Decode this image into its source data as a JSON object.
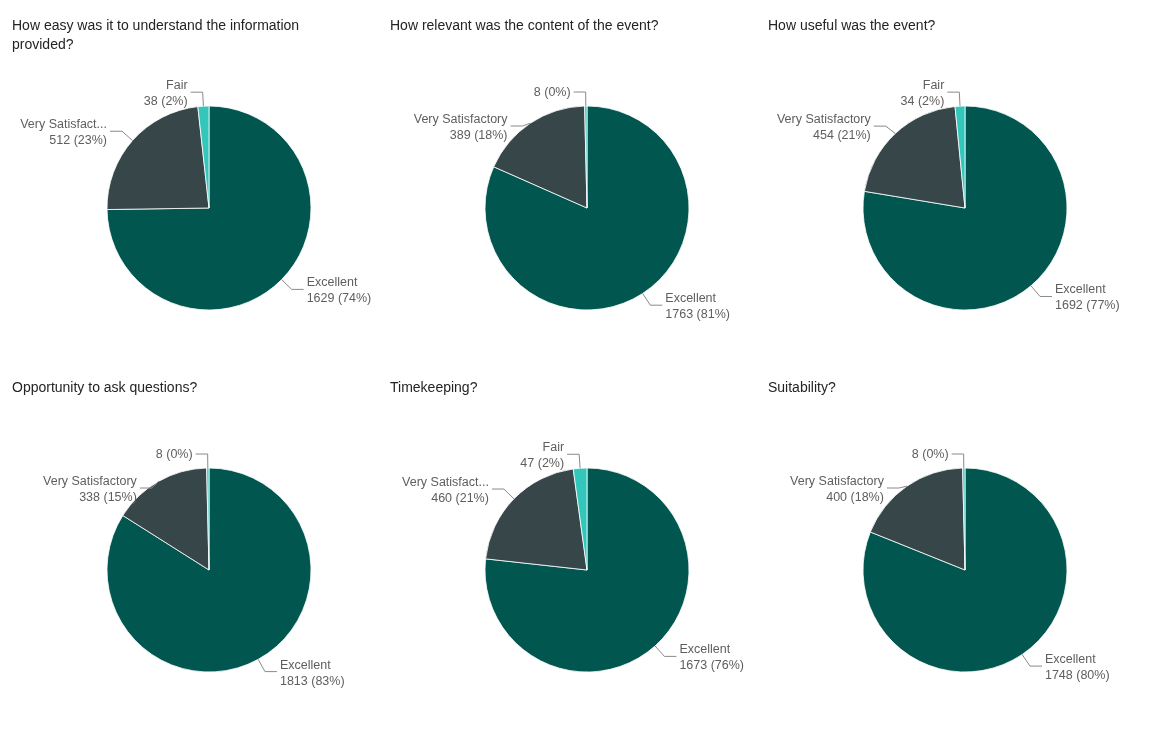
{
  "chart_data": [
    {
      "type": "pie",
      "title": "How easy was it to understand the information provided?",
      "categories": [
        "Excellent",
        "Very Satisfact...",
        "Fair"
      ],
      "values": [
        1629,
        512,
        38
      ],
      "colors": [
        "#01574f",
        "#374649",
        "#33c6bb"
      ],
      "value_labels": [
        "1629 (74%)",
        "512 (23%)",
        "38 (2%)"
      ]
    },
    {
      "type": "pie",
      "title": "How relevant was the content of the event?",
      "categories": [
        "Excellent",
        "Very Satisfactory",
        null
      ],
      "values": [
        1763,
        389,
        8
      ],
      "colors": [
        "#01574f",
        "#374649",
        "#33c6bb"
      ],
      "value_labels": [
        "1763 (81%)",
        "389 (18%)",
        "8 (0%)"
      ]
    },
    {
      "type": "pie",
      "title": "How useful was the event?",
      "categories": [
        "Excellent",
        "Very Satisfactory",
        "Fair"
      ],
      "values": [
        1692,
        454,
        34
      ],
      "colors": [
        "#01574f",
        "#374649",
        "#33c6bb"
      ],
      "value_labels": [
        "1692 (77%)",
        "454 (21%)",
        "34 (2%)"
      ]
    },
    {
      "type": "pie",
      "title": "Opportunity to ask questions?",
      "categories": [
        "Excellent",
        "Very Satisfactory",
        null
      ],
      "values": [
        1813,
        338,
        8
      ],
      "colors": [
        "#01574f",
        "#374649",
        "#33c6bb"
      ],
      "value_labels": [
        "1813 (83%)",
        "338 (15%)",
        "8 (0%)"
      ]
    },
    {
      "type": "pie",
      "title": "Timekeeping?",
      "categories": [
        "Excellent",
        "Very Satisfact...",
        "Fair"
      ],
      "values": [
        1673,
        460,
        47
      ],
      "colors": [
        "#01574f",
        "#374649",
        "#33c6bb"
      ],
      "value_labels": [
        "1673 (76%)",
        "460 (21%)",
        "47 (2%)"
      ]
    },
    {
      "type": "pie",
      "title": "Suitability?",
      "categories": [
        "Excellent",
        "Very Satisfactory",
        null
      ],
      "values": [
        1748,
        400,
        8
      ],
      "colors": [
        "#01574f",
        "#374649",
        "#33c6bb"
      ],
      "value_labels": [
        "1748 (80%)",
        "400 (18%)",
        "8 (0%)"
      ]
    }
  ]
}
